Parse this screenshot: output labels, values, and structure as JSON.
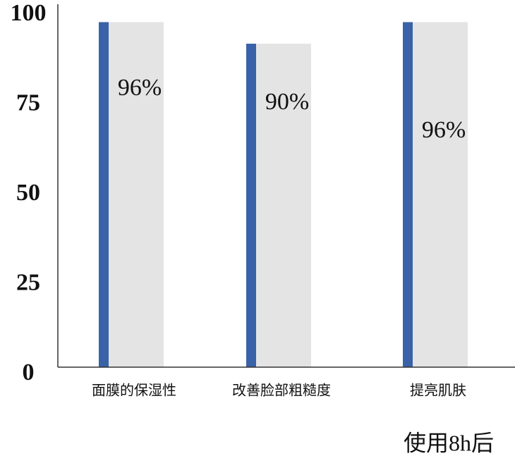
{
  "chart_data": {
    "type": "bar",
    "categories": [
      "面膜的保湿性",
      "改善脸部粗糙度",
      "提亮肌肤"
    ],
    "values": [
      96,
      90,
      96
    ],
    "value_labels": [
      "96%",
      "90%",
      "96%"
    ],
    "color": "#3a62a8",
    "background_color": "#e4e4e4",
    "ylim": [
      0,
      100
    ],
    "yticks": [
      0,
      25,
      50,
      75,
      100
    ],
    "annotation": "使用8h后"
  }
}
